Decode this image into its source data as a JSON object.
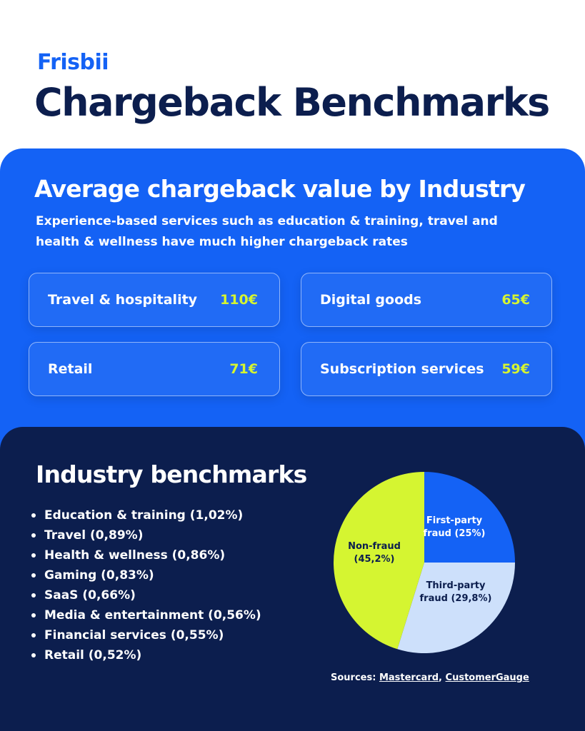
{
  "brand": {
    "logo_text": "Frisbii",
    "accent": "#1462f5"
  },
  "title": "Chargeback Benchmarks",
  "average_section": {
    "title": "Average chargeback value by Industry",
    "subtitle": "Experience-based services such as education & training, travel and health & wellness have much higher chargeback rates",
    "cards": [
      {
        "label": "Travel & hospitality",
        "value": "110€"
      },
      {
        "label": "Digital goods",
        "value": "65€"
      },
      {
        "label": "Retail",
        "value": "71€"
      },
      {
        "label": "Subscription services",
        "value": "59€"
      }
    ]
  },
  "benchmarks": {
    "title": "Industry benchmarks",
    "items": [
      "Education & training (1,02%)",
      "Travel (0,89%)",
      "Health & wellness (0,86%)",
      "Gaming (0,83%)",
      "SaaS (0,66%)",
      "Media & entertainment (0,56%)",
      "Financial services (0,55%)",
      "Retail (0,52%)"
    ]
  },
  "sources": {
    "prefix": "Sources:",
    "links": [
      "Mastercard",
      "CustomerGauge"
    ]
  },
  "chart_data": {
    "type": "pie",
    "title": "",
    "slices": [
      {
        "label_lines": [
          "First-party",
          "fraud (25%)"
        ],
        "value": 25,
        "color": "#1462f5",
        "text_color": "#ffffff"
      },
      {
        "label_lines": [
          "Third-party",
          "fraud (29,8%)"
        ],
        "value": 29.8,
        "color": "#cde0fb",
        "text_color": "#0c1e4e"
      },
      {
        "label_lines": [
          "Non-fraud",
          "(45,2%)"
        ],
        "value": 45.2,
        "color": "#d5f531",
        "text_color": "#0c1e4e"
      }
    ]
  }
}
